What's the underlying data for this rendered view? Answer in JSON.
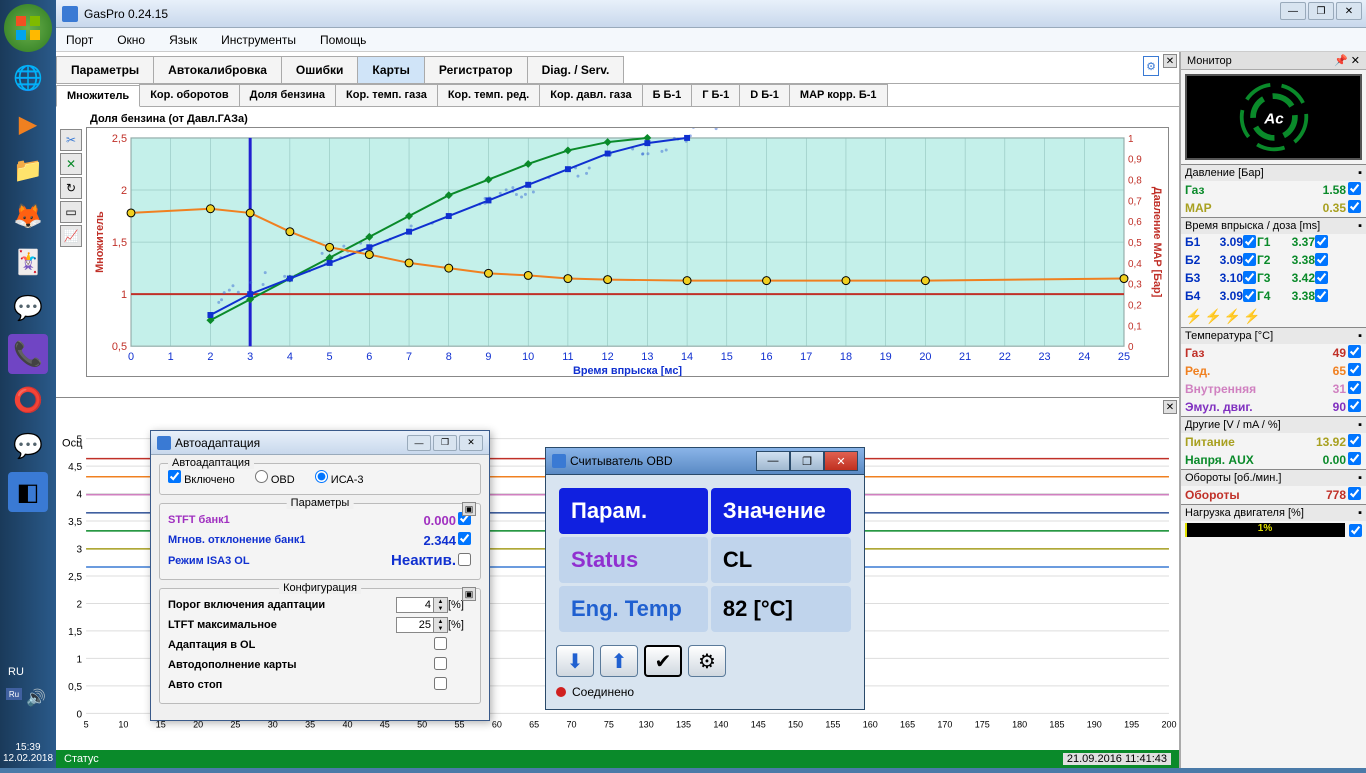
{
  "app": {
    "title": "GasPro 0.24.15"
  },
  "menu": {
    "items": [
      "Порт",
      "Окно",
      "Язык",
      "Инструменты",
      "Помощь"
    ]
  },
  "tabs1": {
    "items": [
      "Параметры",
      "Автокалибровка",
      "Ошибки",
      "Карты",
      "Регистратор",
      "Diag. / Serv."
    ],
    "active": 3
  },
  "tabs2": {
    "items": [
      "Множитель",
      "Кор. оборотов",
      "Доля бензина",
      "Кор. темп. газа",
      "Кор. темп. ред.",
      "Кор. давл. газа",
      "Б Б-1",
      "Г Б-1",
      "D Б-1",
      "MAP корр. Б-1"
    ],
    "active": 0
  },
  "chart": {
    "title": "Доля бензина (от Давл.ГАЗа)",
    "xlabel": "Время впрыска [мс]",
    "ylabel_left": "Множитель",
    "ylabel_right": "Давление MAP [Бар]",
    "xlim": [
      0,
      25
    ],
    "xtick_step": 1,
    "ylim_left": [
      0.5,
      2.5
    ],
    "ytick_left": [
      0.5,
      1,
      1.5,
      2,
      2.5
    ],
    "ylim_right": [
      0,
      1
    ],
    "ytick_right": [
      0,
      0.1,
      0.2,
      0.3,
      0.4,
      0.5,
      0.6,
      0.7,
      0.8,
      0.9,
      1
    ],
    "bg_color": "#c4f0ea",
    "grid_color": "#88bab4",
    "axis_left_color": "#c03028",
    "axis_right_color": "#c03028",
    "axis_bottom_color": "#1030d0",
    "axis_left_fontcolor": "#c03028",
    "axis_right_fontcolor": "#c03028",
    "axis_bottom_fontcolor": "#1030d0",
    "series": {
      "orange_line": {
        "color": "#f08020",
        "points_x": [
          0,
          2,
          3,
          4,
          5,
          6,
          7,
          8,
          9,
          10,
          11,
          12,
          14,
          16,
          18,
          20,
          25
        ],
        "points_y": [
          1.78,
          1.82,
          1.78,
          1.6,
          1.45,
          1.38,
          1.3,
          1.25,
          1.2,
          1.18,
          1.15,
          1.14,
          1.13,
          1.13,
          1.13,
          1.13,
          1.15
        ],
        "marker": "circle",
        "marker_color": "#f0d020",
        "marker_border": "#000"
      },
      "blue_line": {
        "color": "#1030d0",
        "points_x": [
          2,
          3,
          4,
          5,
          6,
          7,
          8,
          9,
          10,
          11,
          12,
          13,
          14
        ],
        "points_y": [
          0.8,
          1.0,
          1.15,
          1.3,
          1.45,
          1.6,
          1.75,
          1.9,
          2.05,
          2.2,
          2.35,
          2.45,
          2.5
        ],
        "marker": "square",
        "marker_color": "#1030d0"
      },
      "green_line": {
        "color": "#0a8a2a",
        "points_x": [
          2,
          3,
          4,
          5,
          6,
          7,
          8,
          9,
          10,
          11,
          12,
          13
        ],
        "points_y": [
          0.75,
          0.95,
          1.15,
          1.35,
          1.55,
          1.75,
          1.95,
          2.1,
          2.25,
          2.38,
          2.46,
          2.5
        ],
        "marker": "diamond",
        "marker_color": "#0a8a2a"
      },
      "scatter": {
        "color": "#3a6ad4",
        "alpha": 0.5
      },
      "red_ref": {
        "color": "#c03028",
        "y": 1.0
      }
    },
    "highlight_x": 3,
    "highlight_color": "#2020d0"
  },
  "autoadapt": {
    "title": "Автоадаптация",
    "group1": "Автоадаптация",
    "enabled_label": "Включено",
    "radio_obd": "OBD",
    "radio_isa": "ИСА-3",
    "group_params": "Параметры",
    "rows_params": [
      {
        "label": "STFT банк1",
        "value": "0.000",
        "color": "#a030c0"
      },
      {
        "label": "Мгнов. отклонение банк1",
        "value": "2.344",
        "color": "#1030d0"
      },
      {
        "label": "Режим ISA3 OL",
        "value": "Неактив.",
        "color": "#1030d0"
      }
    ],
    "group_config": "Конфигурация",
    "rows_config": [
      {
        "label": "Порог включения адаптации",
        "value": "4",
        "unit": "[%]"
      },
      {
        "label": "LTFT максимальное",
        "value": "25",
        "unit": "[%]"
      },
      {
        "label": "Адаптация в OL",
        "checkbox": true
      },
      {
        "label": "Автодополнение карты",
        "checkbox": true
      },
      {
        "label": "Авто стоп",
        "checkbox": true
      }
    ]
  },
  "obd": {
    "title": "Считыватель OBD",
    "th_param": "Парам.",
    "th_value": "Значение",
    "rows": [
      {
        "label": "Status",
        "value": "CL"
      },
      {
        "label": "Eng. Temp",
        "value": "82 [°C]"
      }
    ],
    "status": "Соединено"
  },
  "monitor": {
    "header": "Монитор",
    "pressure_hdr": "Давление [Бар]",
    "pressure": [
      {
        "label": "Газ",
        "value": "1.58",
        "color": "#0a8a2a"
      },
      {
        "label": "MAP",
        "value": "0.35",
        "color": "#a8a020"
      }
    ],
    "inject_hdr": "Время впрыска / доза [ms]",
    "inject": [
      {
        "b": "Б1",
        "bv": "3.09",
        "g": "Г1",
        "gv": "3.37",
        "gc": "#0a8a2a"
      },
      {
        "b": "Б2",
        "bv": "3.09",
        "g": "Г2",
        "gv": "3.38",
        "gc": "#0a8a2a"
      },
      {
        "b": "Б3",
        "bv": "3.10",
        "g": "Г3",
        "gv": "3.42",
        "gc": "#0a8a2a"
      },
      {
        "b": "Б4",
        "bv": "3.09",
        "g": "Г4",
        "gv": "3.38",
        "gc": "#0a8a2a"
      }
    ],
    "temp_hdr": "Температура [°C]",
    "temp": [
      {
        "label": "Газ",
        "value": "49",
        "color": "#c03028"
      },
      {
        "label": "Ред.",
        "value": "65",
        "color": "#f08020"
      },
      {
        "label": "Внутренняя",
        "value": "31",
        "color": "#d080c0"
      },
      {
        "label": "Эмул. двиг.",
        "value": "90",
        "color": "#8030c0"
      }
    ],
    "other_hdr": "Другие [V / mA / %]",
    "other": [
      {
        "label": "Питание",
        "value": "13.92",
        "color": "#a8a020"
      },
      {
        "label": "Напря. AUX",
        "value": "0.00",
        "color": "#0a8a2a"
      }
    ],
    "rpm_hdr": "Обороты [об./мин.]",
    "rpm": {
      "label": "Обороты",
      "value": "778",
      "color": "#c03028"
    },
    "load_hdr": "Нагрузка двигателя [%]",
    "load_pct": "1%"
  },
  "oscill": {
    "label": "Осц",
    "yticks": [
      "5",
      "4,5",
      "4",
      "3,5",
      "3",
      "2,5",
      "2",
      "1,5",
      "1",
      "0,5",
      "0"
    ],
    "xticks": [
      "5",
      "10",
      "15",
      "20",
      "25",
      "30",
      "35",
      "40",
      "45",
      "50",
      "55",
      "60",
      "65",
      "70",
      "75",
      "130",
      "135",
      "140",
      "145",
      "150",
      "155",
      "160",
      "165",
      "170",
      "175",
      "180",
      "185",
      "190",
      "195",
      "200"
    ]
  },
  "status": {
    "label": "Статус",
    "timestamp": "21.09.2016 11:41:43"
  },
  "taskbar": {
    "clock": "15:39",
    "date": "12.02.2018",
    "lang": "RU"
  }
}
